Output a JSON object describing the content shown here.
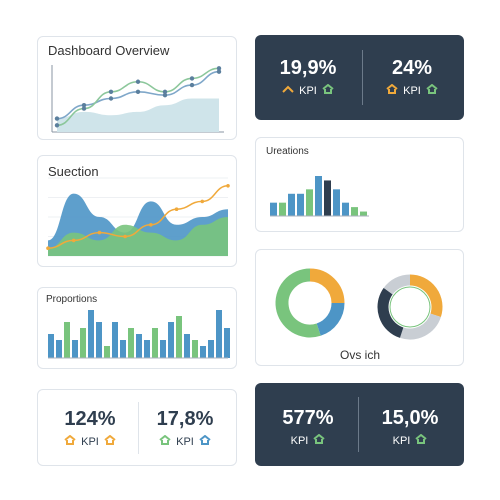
{
  "cards": {
    "overview_title": "Dashboard Overview",
    "suection_title": "Suection",
    "proportions_title": "Proportions",
    "ureations_title": "Ureations",
    "donut_caption": "Ovs ich"
  },
  "kpis": {
    "top_left": {
      "value": "19,9%",
      "label": "KPI"
    },
    "top_right": {
      "value": "24%",
      "label": "KPI"
    },
    "bottom_light_left": {
      "value": "124%",
      "label": "KPI"
    },
    "bottom_light_right": {
      "value": "17,8%",
      "label": "KPI"
    },
    "bottom_dark_left": {
      "value": "577%",
      "label": "KPI"
    },
    "bottom_dark_right": {
      "value": "15,0%",
      "label": "KPI"
    }
  },
  "colors": {
    "blue": "#4d95c6",
    "green": "#79c47d",
    "orange": "#f0a93b",
    "dark": "#2f3e4f",
    "gray": "#c9ced4"
  },
  "icons": [
    "chevron-up-icon",
    "home-icon"
  ],
  "watermark": "1960508579",
  "chart_data": [
    {
      "type": "line",
      "name": "overview",
      "series": [
        {
          "values": [
            2,
            4,
            5,
            6,
            5.5,
            7,
            9
          ]
        },
        {
          "values": [
            1,
            3.5,
            6,
            7.5,
            6,
            8,
            9.5
          ]
        },
        {
          "values": [
            2,
            3,
            2.5,
            3,
            4,
            5,
            5
          ]
        }
      ]
    },
    {
      "type": "area",
      "name": "suection",
      "series": [
        {
          "values": [
            2,
            8,
            5,
            3,
            7,
            4,
            5,
            6
          ]
        },
        {
          "values": [
            1,
            3,
            2,
            4,
            3,
            2,
            4,
            5
          ]
        },
        {
          "values": [
            1,
            2,
            3,
            2.5,
            4,
            6,
            7,
            9
          ]
        }
      ]
    },
    {
      "type": "bar",
      "name": "ureations",
      "values": [
        3,
        3,
        5,
        5,
        6,
        9,
        8,
        6,
        3,
        2,
        1
      ]
    },
    {
      "type": "bar",
      "name": "proportions",
      "values": [
        4,
        3,
        6,
        3,
        5,
        8,
        6,
        2,
        6,
        3,
        5,
        4,
        3,
        5,
        3,
        6,
        7,
        4,
        3,
        2,
        3,
        8,
        5
      ]
    },
    {
      "type": "pie",
      "name": "donut-left",
      "values": [
        25,
        20,
        55
      ]
    },
    {
      "type": "pie",
      "name": "donut-right",
      "values": [
        30,
        25,
        30,
        15
      ]
    }
  ]
}
